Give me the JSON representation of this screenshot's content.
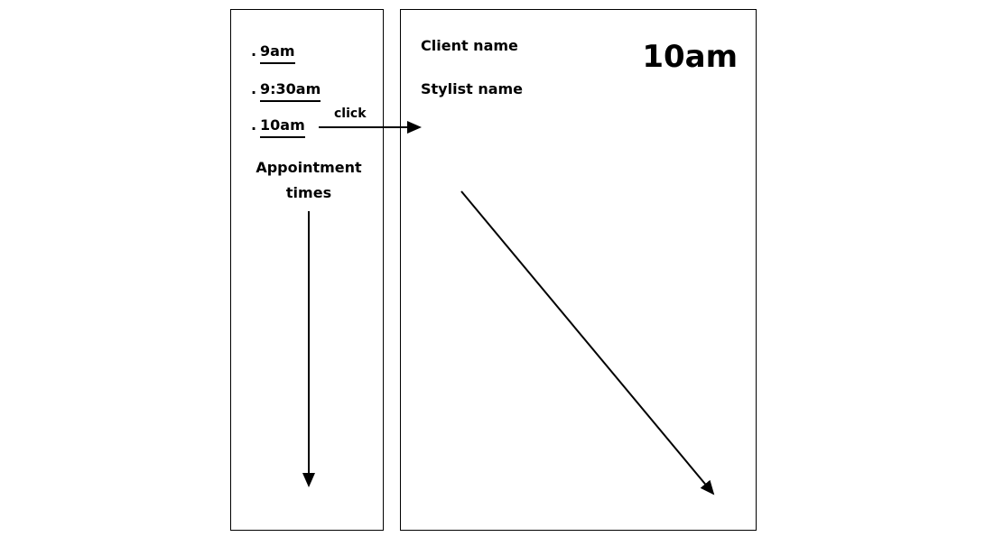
{
  "appointment_list": {
    "times": [
      ".9am",
      ".9:30am",
      ".10am"
    ],
    "caption": "Appointment times"
  },
  "detail_panel": {
    "client_label": "Client name",
    "stylist_label": "Stylist name",
    "selected_time": "10am"
  },
  "annotations": {
    "click_label": "click"
  }
}
